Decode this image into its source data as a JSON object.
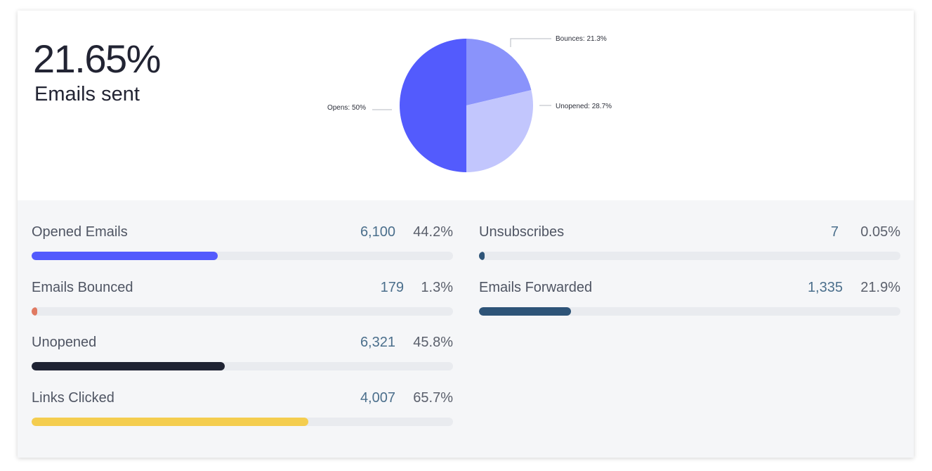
{
  "summary": {
    "headline_value": "21.65%",
    "headline_label": "Emails sent"
  },
  "chart_data": {
    "type": "pie",
    "slices": [
      {
        "label": "Bounces: 21.3%",
        "name": "Bounces",
        "value": 21.3,
        "color": "#8a93fb"
      },
      {
        "label": "Unopened: 28.7%",
        "name": "Unopened",
        "value": 28.7,
        "color": "#c2c6fd"
      },
      {
        "label": "Opens: 50%",
        "name": "Opens",
        "value": 50,
        "color": "#535bfd"
      }
    ]
  },
  "metrics": {
    "left": [
      {
        "label": "Opened Emails",
        "count": "6,100",
        "percent": "44.2%",
        "fraction": 0.442,
        "color": "#535bfd"
      },
      {
        "label": "Emails Bounced",
        "count": "179",
        "percent": "1.3%",
        "fraction": 0.013,
        "color": "#e07a62"
      },
      {
        "label": "Unopened",
        "count": "6,321",
        "percent": "45.8%",
        "fraction": 0.458,
        "color": "#1f2333"
      },
      {
        "label": "Links Clicked",
        "count": "4,007",
        "percent": "65.7%",
        "fraction": 0.657,
        "color": "#f4cd4f"
      }
    ],
    "right": [
      {
        "label": "Unsubscribes",
        "count": "7",
        "percent": "0.05%",
        "fraction": 0.0005,
        "color": "#2e5478"
      },
      {
        "label": "Emails Forwarded",
        "count": "1,335",
        "percent": "21.9%",
        "fraction": 0.219,
        "color": "#2e5478"
      }
    ]
  }
}
